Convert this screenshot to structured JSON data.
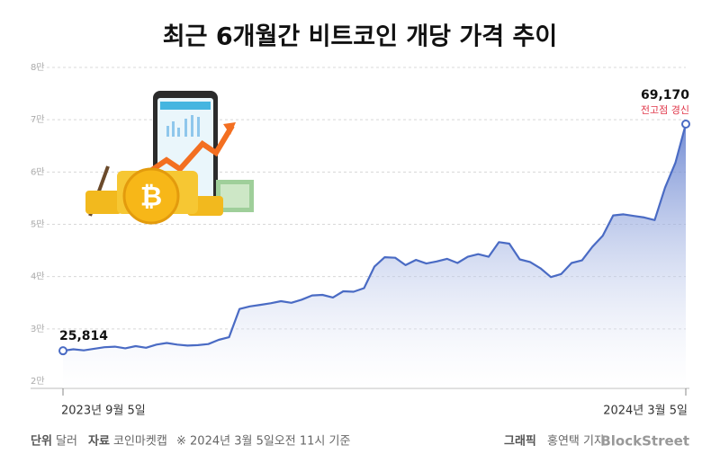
{
  "chart_data": {
    "type": "area",
    "title": "최근 6개월간 비트코인 개당 가격 추이",
    "categories": [
      "2023년 9월 5일",
      null,
      null,
      null,
      null,
      null,
      null,
      null,
      null,
      null,
      null,
      null,
      null,
      null,
      null,
      null,
      null,
      null,
      null,
      null,
      null,
      null,
      null,
      null,
      null,
      null,
      null,
      null,
      null,
      null,
      null,
      null,
      null,
      null,
      null,
      null,
      null,
      null,
      null,
      null,
      null,
      null,
      null,
      null,
      null,
      null,
      null,
      null,
      null,
      null,
      null,
      null,
      null,
      null,
      null,
      null,
      null,
      null,
      null,
      null,
      "2024년 3월 5일"
    ],
    "values": [
      25814,
      26100,
      25900,
      26200,
      26500,
      26600,
      26300,
      26700,
      26400,
      27000,
      27300,
      27000,
      26800,
      26900,
      27100,
      27900,
      28400,
      33800,
      34300,
      34600,
      34900,
      35300,
      35000,
      35600,
      36400,
      36500,
      36000,
      37200,
      37100,
      37800,
      41900,
      43700,
      43600,
      42200,
      43200,
      42500,
      42900,
      43400,
      42600,
      43800,
      44300,
      43800,
      46600,
      46300,
      43300,
      42800,
      41600,
      39900,
      40500,
      42600,
      43100,
      45700,
      47800,
      51700,
      51900,
      51600,
      51300,
      50800,
      57000,
      61800,
      69170
    ],
    "value_labels": [
      "25,814",
      null,
      null,
      null,
      null,
      null,
      null,
      null,
      null,
      null,
      null,
      null,
      null,
      null,
      null,
      null,
      null,
      null,
      null,
      null,
      null,
      null,
      null,
      null,
      null,
      null,
      null,
      null,
      null,
      null,
      null,
      null,
      null,
      null,
      null,
      null,
      null,
      null,
      null,
      null,
      null,
      null,
      null,
      null,
      null,
      null,
      null,
      null,
      null,
      null,
      null,
      null,
      null,
      null,
      null,
      null,
      null,
      null,
      null,
      null,
      "69,170"
    ],
    "annotation": "전고점 경신",
    "color": "#4a6bc4",
    "ylim": [
      20000,
      80000
    ],
    "yticks": [
      {
        "value": 20000,
        "label": "2만"
      },
      {
        "value": 30000,
        "label": "3만"
      },
      {
        "value": 40000,
        "label": "4만"
      },
      {
        "value": 50000,
        "label": "5만"
      },
      {
        "value": 60000,
        "label": "6만"
      },
      {
        "value": 70000,
        "label": "7만"
      },
      {
        "value": 80000,
        "label": "8만"
      }
    ],
    "grid": true
  },
  "footer": {
    "unit_label": "단위",
    "unit": "달러",
    "source_label": "자료",
    "source": "코인마켓캡",
    "note": "※ 2024년 3월 5일오전 11시 기준",
    "credit_label": "그래픽",
    "credit": "홍연택 기자",
    "brand": "BlockStreet"
  }
}
